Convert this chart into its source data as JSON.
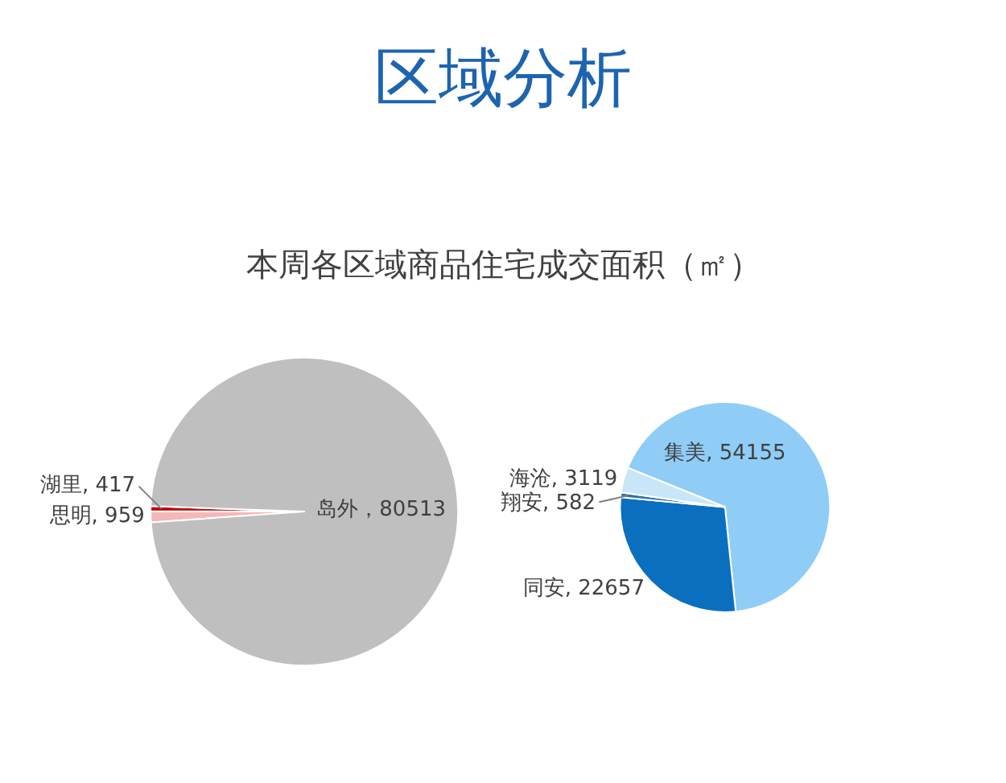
{
  "chart_data": [
    {
      "type": "pie",
      "title": "区域分析",
      "subtitle": "本周各区域商品住宅成交面积（㎡）",
      "categories": [
        "思明",
        "湖里",
        "岛外"
      ],
      "values": [
        959,
        417,
        80513
      ],
      "colors": [
        "#f4b8b8",
        "#c00000",
        "#bfbfbf"
      ],
      "value_labels": [
        ", 959",
        ", 417",
        "，80513"
      ],
      "legend": false
    },
    {
      "type": "pie",
      "categories": [
        "集美",
        "同安",
        "翔安",
        "海沧"
      ],
      "values": [
        54155,
        22657,
        582,
        3119
      ],
      "colors": [
        "#8fcdf6",
        "#0b6fc0",
        "#2f6fb0",
        "#c9e6f8"
      ],
      "value_labels": [
        ", 54155",
        ", 22657",
        ", 582",
        ", 3119"
      ],
      "legend": false
    }
  ]
}
